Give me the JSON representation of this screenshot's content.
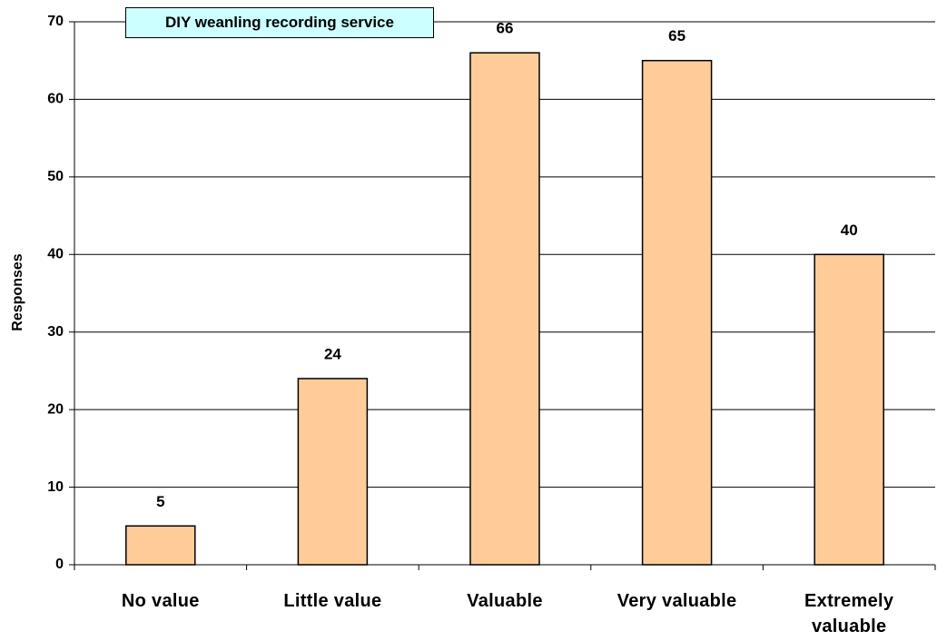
{
  "chart_data": {
    "type": "bar",
    "title": "DIY weanling recording service",
    "y_label": "Responses",
    "categories": [
      "No value",
      "Little value",
      "Valuable",
      "Very valuable",
      "Extremely valuable"
    ],
    "values": [
      5,
      24,
      66,
      65,
      40
    ],
    "color": "#ffcc99",
    "ylim": [
      0,
      70
    ],
    "yticks": [
      0,
      10,
      20,
      30,
      40,
      50,
      60,
      70
    ],
    "grid": true
  }
}
